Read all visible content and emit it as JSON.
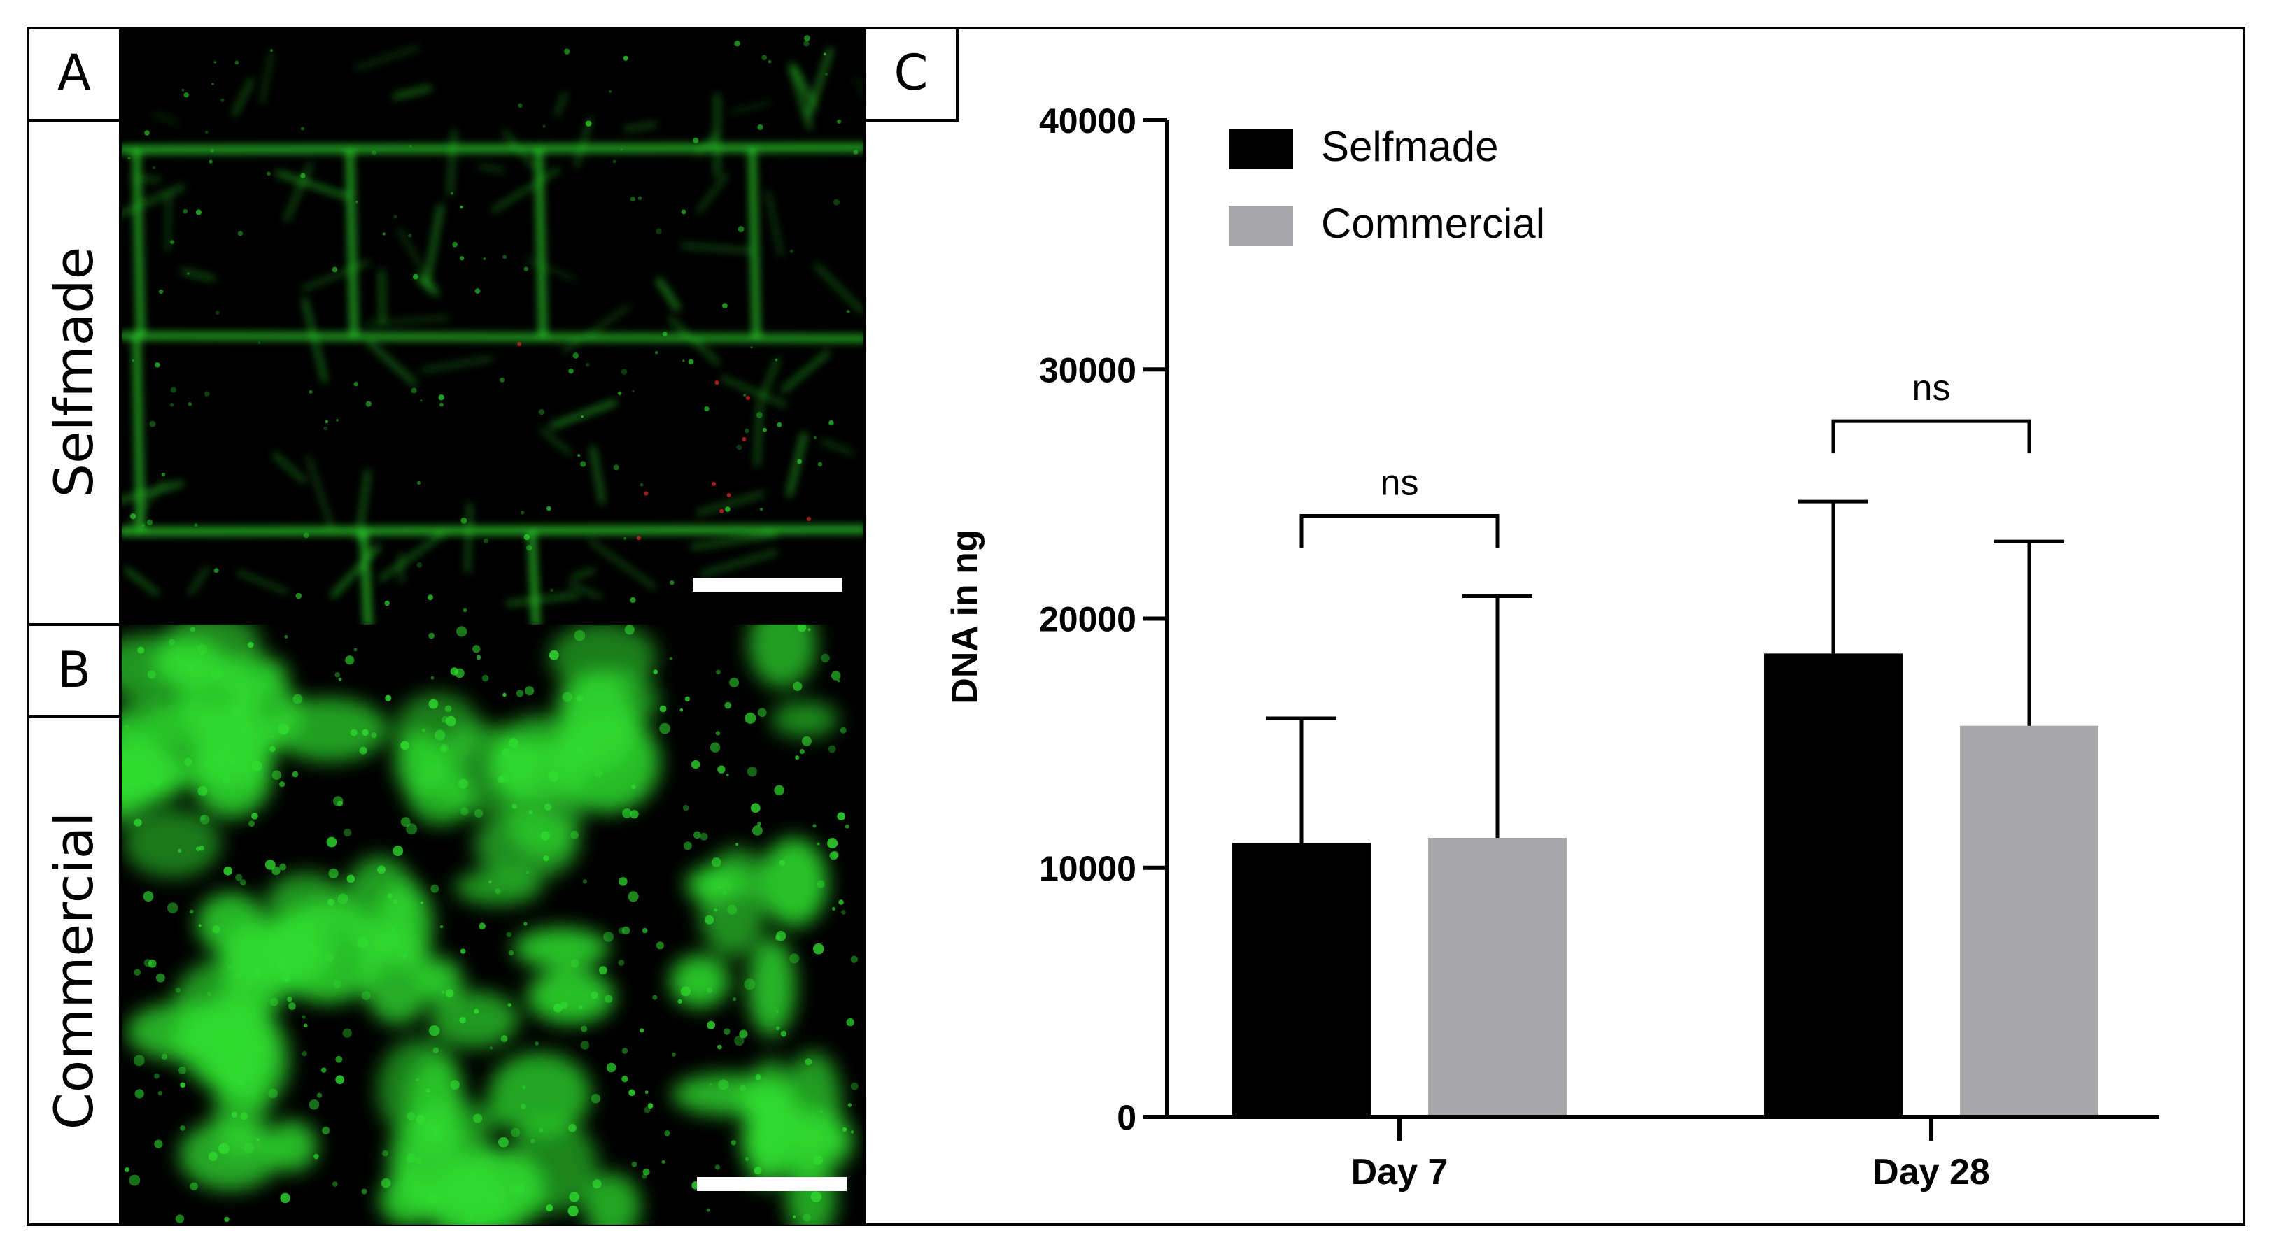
{
  "panels": {
    "a": {
      "letter": "A",
      "label": "Selfmade"
    },
    "b": {
      "letter": "B",
      "label": "Commercial"
    },
    "c": {
      "letter": "C"
    }
  },
  "colors": {
    "selfmade": "#000000",
    "commercial": "#a7a7aa",
    "fluorescence": "#2fdc2f",
    "scale_bar": "#ffffff"
  },
  "chart_data": {
    "type": "bar",
    "categories": [
      "Day 7",
      "Day 28"
    ],
    "series": [
      {
        "name": "Selfmade",
        "values": [
          11000,
          18600
        ],
        "error": [
          5000,
          6100
        ]
      },
      {
        "name": "Commercial",
        "values": [
          11200,
          15700
        ],
        "error": [
          9700,
          7400
        ]
      }
    ],
    "ylabel": "DNA in ng",
    "xlabel": "",
    "ylim": [
      0,
      40000
    ],
    "yticks": [
      0,
      10000,
      20000,
      30000,
      40000
    ],
    "grid": false,
    "legend_position": "top-left",
    "significance": [
      {
        "category": "Day 7",
        "label": "ns"
      },
      {
        "category": "Day 28",
        "label": "ns"
      }
    ]
  }
}
